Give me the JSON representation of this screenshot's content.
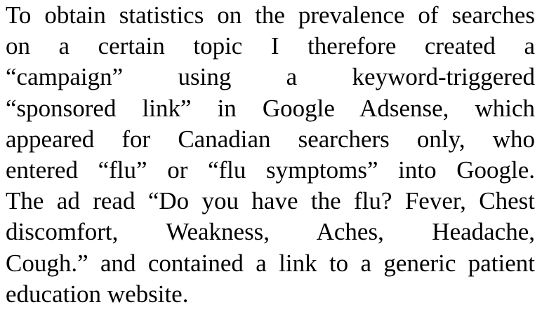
{
  "document": {
    "paragraph_lines": [
      "To obtain statistics on the prevalence of searches",
      "on a certain topic I therefore created a",
      "“campaign” using a keyword-triggered",
      "“sponsored link” in Google Adsense, which",
      "appeared for Canadian searchers only, who",
      "entered “flu” or “flu symptoms” into Google.",
      "The ad read “Do you have the flu? Fever, Chest",
      "discomfort, Weakness, Aches, Headache,",
      "Cough.” and contained a link to a generic patient",
      "education website."
    ]
  }
}
